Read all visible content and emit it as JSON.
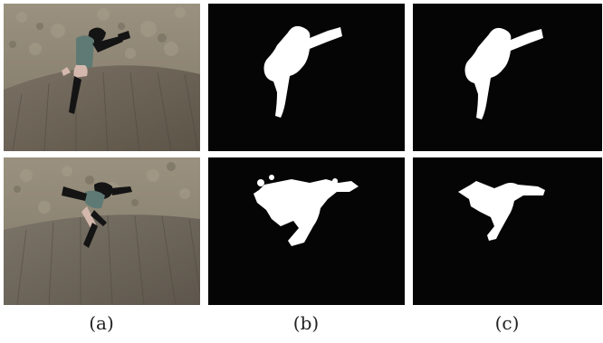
{
  "captions": {
    "a": "(a)",
    "b": "(b)",
    "c": "(c)"
  },
  "colors": {
    "wall": "#8d8575",
    "floor": "#6f665a",
    "mask_bg": "#050505",
    "mask_fg": "#ffffff",
    "figure_dark": "#141414",
    "figure_shirt": "#5f7a74",
    "figure_skin": "#d4b8ad"
  }
}
